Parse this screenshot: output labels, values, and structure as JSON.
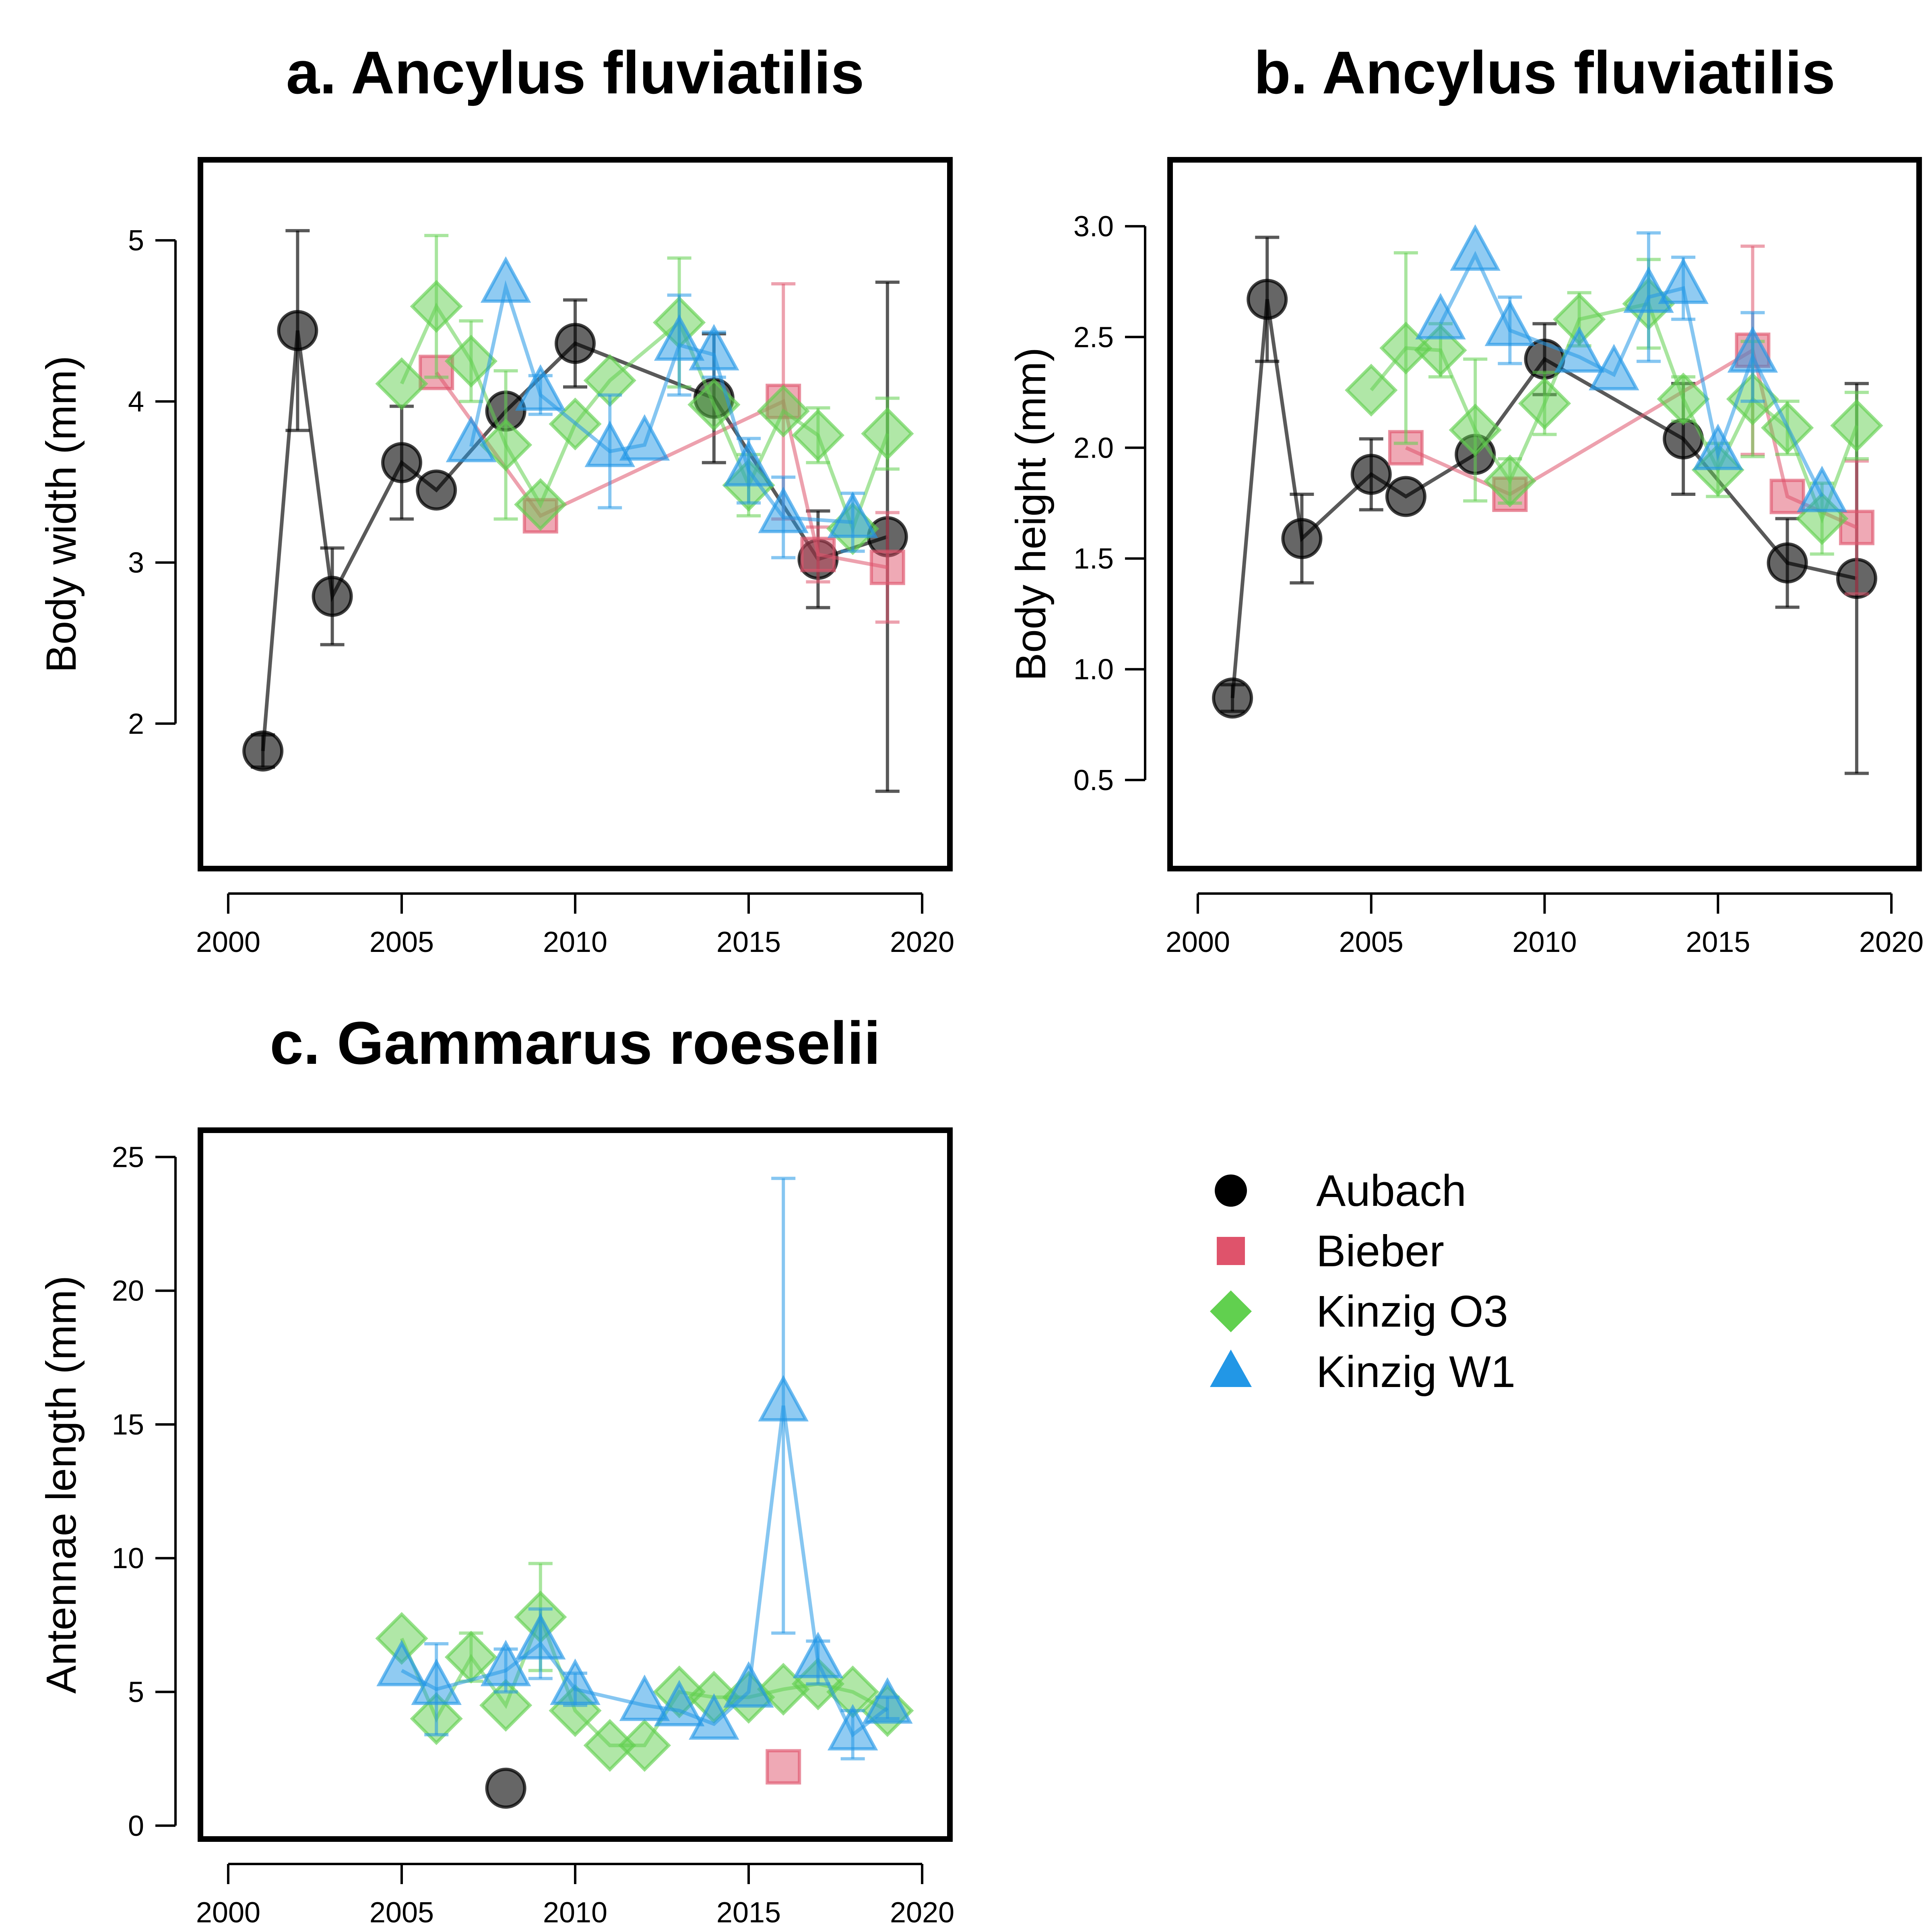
{
  "legend": {
    "entries": [
      {
        "name": "Aubach",
        "color": "#000000",
        "marker": "circle"
      },
      {
        "name": "Bieber",
        "color": "#df536b",
        "marker": "square"
      },
      {
        "name": "Kinzig O3",
        "color": "#61d04f",
        "marker": "diamond"
      },
      {
        "name": "Kinzig W1",
        "color": "#2297e6",
        "marker": "triangle"
      }
    ]
  },
  "chart_data": [
    {
      "type": "scatter",
      "title": "a. Ancylus fluviatilis",
      "xlabel": "",
      "ylabel": "Body width (mm)",
      "xlim": [
        1999.2,
        2020.8
      ],
      "ylim": [
        1.1,
        5.5
      ],
      "xticks": [
        2000,
        2005,
        2010,
        2015,
        2020
      ],
      "yticks": [
        2,
        3,
        4,
        5
      ],
      "series": [
        {
          "name": "Aubach",
          "x": [
            2001,
            2002,
            2003,
            2005,
            2006,
            2008,
            2010,
            2014,
            2017,
            2019
          ],
          "y": [
            1.83,
            4.44,
            2.79,
            3.62,
            3.45,
            3.94,
            4.36,
            4.02,
            3.02,
            3.16
          ],
          "err": [
            0.1,
            0.62,
            0.3,
            0.35,
            0.0,
            0.0,
            0.27,
            0.4,
            0.3,
            1.58
          ]
        },
        {
          "name": "Bieber",
          "x": [
            2006,
            2009,
            2016,
            2017,
            2019
          ],
          "y": [
            4.18,
            3.29,
            4.0,
            3.05,
            2.97
          ],
          "err": [
            0.0,
            0.0,
            0.73,
            0.17,
            0.34
          ]
        },
        {
          "name": "Kinzig O3",
          "x": [
            2005,
            2006,
            2007,
            2008,
            2009,
            2010,
            2011,
            2013,
            2014,
            2015,
            2016,
            2017,
            2018,
            2019
          ],
          "y": [
            4.11,
            4.59,
            4.25,
            3.73,
            3.36,
            3.86,
            4.13,
            4.49,
            3.98,
            3.48,
            3.94,
            3.79,
            3.21,
            3.8
          ],
          "err": [
            0.0,
            0.44,
            0.25,
            0.46,
            0.0,
            0.0,
            0.0,
            0.4,
            0.0,
            0.19,
            0.0,
            0.17,
            0.0,
            0.22
          ]
        },
        {
          "name": "Kinzig W1",
          "x": [
            2007,
            2008,
            2009,
            2011,
            2012,
            2013,
            2014,
            2015,
            2016,
            2018
          ],
          "y": [
            3.72,
            4.71,
            4.04,
            3.69,
            3.73,
            4.35,
            4.29,
            3.57,
            3.28,
            3.25
          ],
          "err": [
            0.0,
            0.0,
            0.12,
            0.35,
            0.0,
            0.31,
            0.14,
            0.2,
            0.25,
            0.18
          ]
        }
      ]
    },
    {
      "type": "scatter",
      "title": "b. Ancylus fluviatilis",
      "xlabel": "",
      "ylabel": "Body height (mm)",
      "xlim": [
        1999.2,
        2020.8
      ],
      "ylim": [
        0.1,
        3.3
      ],
      "xticks": [
        2000,
        2005,
        2010,
        2015,
        2020
      ],
      "yticks": [
        0.5,
        1.0,
        1.5,
        2.0,
        2.5,
        3.0
      ],
      "ytick_labels": [
        "0.5",
        "1.0",
        "1.5",
        "2.0",
        "2.5",
        "3.0"
      ],
      "series": [
        {
          "name": "Aubach",
          "x": [
            2001,
            2002,
            2003,
            2005,
            2006,
            2008,
            2010,
            2014,
            2017,
            2019
          ],
          "y": [
            0.87,
            2.67,
            1.59,
            1.88,
            1.78,
            1.97,
            2.4,
            2.04,
            1.48,
            1.41
          ],
          "err": [
            0.06,
            0.28,
            0.2,
            0.16,
            0.0,
            0.0,
            0.16,
            0.25,
            0.2,
            0.88
          ]
        },
        {
          "name": "Bieber",
          "x": [
            2006,
            2009,
            2016,
            2017,
            2019
          ],
          "y": [
            2.0,
            1.79,
            2.44,
            1.78,
            1.64
          ],
          "err": [
            0.0,
            0.0,
            0.47,
            0.0,
            0.3
          ]
        },
        {
          "name": "Kinzig O3",
          "x": [
            2005,
            2006,
            2007,
            2008,
            2009,
            2010,
            2011,
            2013,
            2014,
            2015,
            2016,
            2017,
            2018,
            2019
          ],
          "y": [
            2.26,
            2.45,
            2.44,
            2.08,
            1.85,
            2.2,
            2.58,
            2.65,
            2.22,
            1.9,
            2.22,
            2.09,
            1.68,
            2.1
          ],
          "err": [
            0.0,
            0.43,
            0.12,
            0.32,
            0.1,
            0.14,
            0.12,
            0.2,
            0.1,
            0.12,
            0.26,
            0.12,
            0.16,
            0.15
          ]
        },
        {
          "name": "Kinzig W1",
          "x": [
            2007,
            2008,
            2009,
            2011,
            2012,
            2013,
            2014,
            2015,
            2016,
            2018
          ],
          "y": [
            2.56,
            2.87,
            2.53,
            2.41,
            2.33,
            2.68,
            2.72,
            1.97,
            2.41,
            1.78
          ],
          "err": [
            0.0,
            0.0,
            0.15,
            0.0,
            0.0,
            0.29,
            0.14,
            0.0,
            0.2,
            0.0
          ]
        }
      ]
    },
    {
      "type": "scatter",
      "title": "c. Gammarus roeselii",
      "xlabel": "",
      "ylabel": "Antennae length (mm)",
      "xlim": [
        1999.2,
        2020.8
      ],
      "ylim": [
        -0.5,
        26
      ],
      "xticks": [
        2000,
        2005,
        2010,
        2015,
        2020
      ],
      "yticks": [
        0,
        5,
        10,
        15,
        20,
        25
      ],
      "series": [
        {
          "name": "Aubach",
          "x": [
            2008
          ],
          "y": [
            1.4
          ],
          "err": [
            0.0
          ]
        },
        {
          "name": "Bieber",
          "x": [
            2016
          ],
          "y": [
            2.2
          ],
          "err": [
            0.0
          ]
        },
        {
          "name": "Kinzig O3",
          "x": [
            2005,
            2006,
            2007,
            2008,
            2009,
            2010,
            2011,
            2012,
            2013,
            2014,
            2015,
            2016,
            2017,
            2018,
            2019
          ],
          "y": [
            7.0,
            4.0,
            6.3,
            4.5,
            7.8,
            4.3,
            3.0,
            3.0,
            5.0,
            4.8,
            4.8,
            5.1,
            5.3,
            5.0,
            4.3
          ],
          "err": [
            0.0,
            0.0,
            0.9,
            0.0,
            2.0,
            0.0,
            0.0,
            0.0,
            0.0,
            0.0,
            0.0,
            0.0,
            0.0,
            0.0,
            0.0
          ]
        },
        {
          "name": "Kinzig W1",
          "x": [
            2005,
            2006,
            2008,
            2009,
            2010,
            2012,
            2013,
            2014,
            2015,
            2016,
            2017,
            2018,
            2019
          ],
          "y": [
            5.8,
            5.1,
            5.8,
            6.8,
            5.1,
            4.5,
            4.3,
            3.8,
            5.0,
            15.7,
            6.1,
            3.4,
            4.4
          ],
          "err": [
            0.0,
            1.7,
            0.8,
            1.3,
            0.6,
            0.0,
            0.0,
            0.0,
            0.0,
            8.5,
            0.8,
            0.9,
            0.4
          ]
        }
      ]
    }
  ]
}
